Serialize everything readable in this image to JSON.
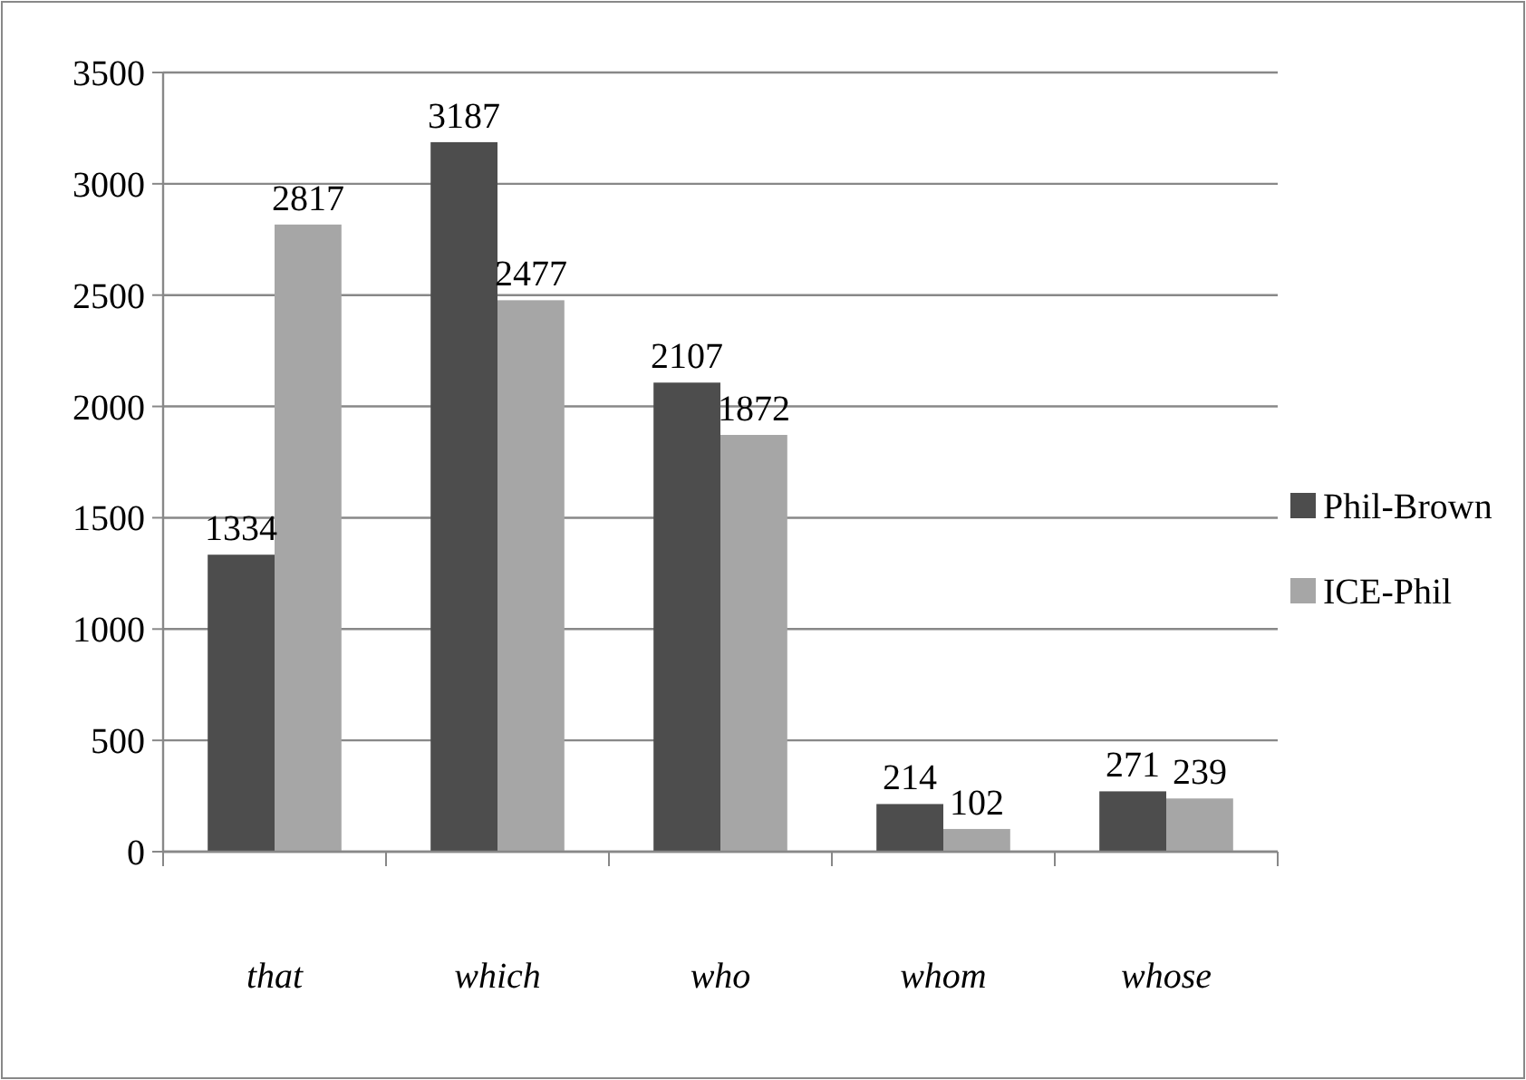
{
  "chart_data": {
    "type": "bar",
    "categories": [
      "that",
      "which",
      "who",
      "whom",
      "whose"
    ],
    "series": [
      {
        "name": "Phil-Brown",
        "color": "#4d4d4d",
        "values": [
          1334,
          3187,
          2107,
          214,
          271
        ]
      },
      {
        "name": "ICE-Phil",
        "color": "#a6a6a6",
        "values": [
          2817,
          2477,
          1872,
          102,
          239
        ]
      }
    ],
    "ylim": [
      0,
      3500
    ],
    "yticks": [
      0,
      500,
      1000,
      1500,
      2000,
      2500,
      3000,
      3500
    ],
    "grid": "y",
    "legend": "right",
    "data_labels": true
  }
}
